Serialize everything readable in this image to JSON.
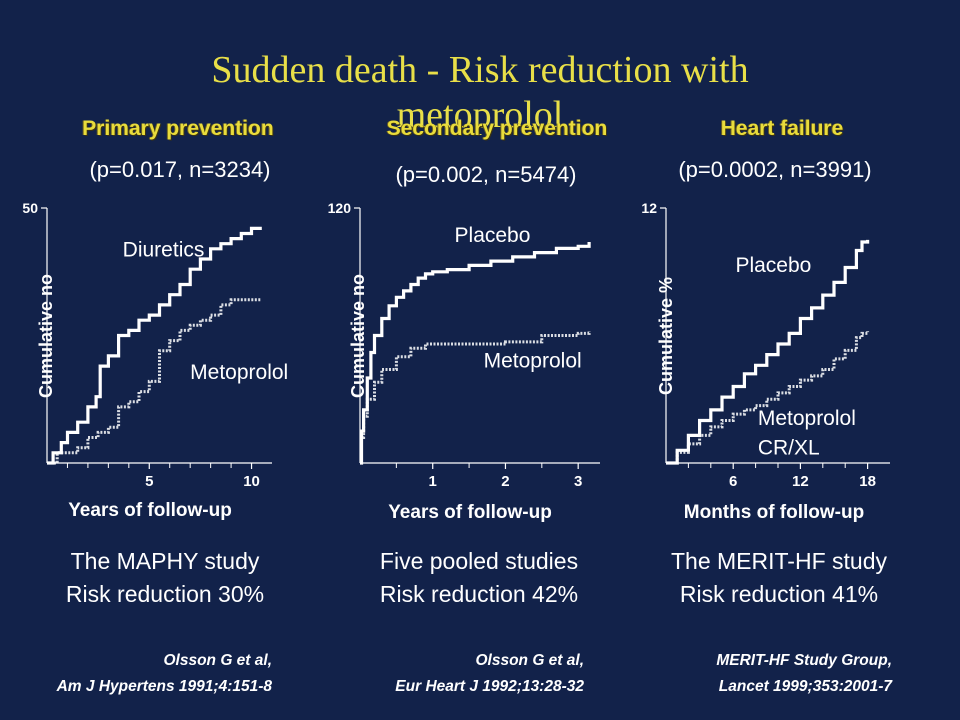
{
  "title": "Sudden death - Risk reduction with metoprolol",
  "panels": [
    {
      "heading": "Primary prevention",
      "stats": "(p=0.017, n=3234)",
      "study": "The MAPHY study",
      "reduction": "Risk reduction 30%",
      "citation_author": "Olsson G et al,",
      "citation_ref": "Am J Hypertens 1991;4:151-8"
    },
    {
      "heading": "Secondary prevention",
      "stats": "(p=0.002, n=5474)",
      "study": "Five pooled studies",
      "reduction": "Risk reduction 42%",
      "citation_author": "Olsson G et al,",
      "citation_ref": "Eur Heart J 1992;13:28-32"
    },
    {
      "heading": "Heart failure",
      "stats": "(p=0.0002, n=3991)",
      "study": "The MERIT-HF study",
      "reduction": "Risk reduction 41%",
      "citation_author": "MERIT-HF Study Group,",
      "citation_ref": "Lancet 1999;353:2001-7"
    }
  ],
  "colors": {
    "background": "#12224a",
    "title": "#e8df48",
    "heading": "#e9dc3c",
    "curve": "#ffffff",
    "text": "#ffffff"
  },
  "chart_data": [
    {
      "type": "line",
      "title": "Primary prevention",
      "xlabel": "Years of follow-up",
      "ylabel": "Cumulative no",
      "xlim": [
        0,
        11
      ],
      "ylim": [
        0,
        50
      ],
      "xticks": [
        5,
        10
      ],
      "xtick_labels": [
        "5",
        "10"
      ],
      "yticks": [
        50
      ],
      "ytick_labels": [
        "50"
      ],
      "minor_xticks": [
        1,
        2,
        3,
        4,
        6,
        7,
        8,
        9
      ],
      "series": [
        {
          "name": "Diuretics",
          "style": "solid",
          "points": [
            [
              0,
              0
            ],
            [
              0.3,
              2
            ],
            [
              0.7,
              4
            ],
            [
              1.0,
              6
            ],
            [
              1.5,
              8
            ],
            [
              2.0,
              11
            ],
            [
              2.4,
              13
            ],
            [
              2.6,
              19
            ],
            [
              3.0,
              21
            ],
            [
              3.5,
              25
            ],
            [
              4.0,
              26
            ],
            [
              4.5,
              28
            ],
            [
              5.0,
              29
            ],
            [
              5.5,
              31
            ],
            [
              6.0,
              33
            ],
            [
              6.5,
              35
            ],
            [
              7.0,
              38
            ],
            [
              7.5,
              40
            ],
            [
              8.0,
              42
            ],
            [
              8.5,
              43
            ],
            [
              9.0,
              44
            ],
            [
              9.5,
              45
            ],
            [
              10.0,
              46
            ],
            [
              10.5,
              46
            ]
          ]
        },
        {
          "name": "Metoprolol",
          "style": "dotted",
          "points": [
            [
              0,
              0
            ],
            [
              0.5,
              2
            ],
            [
              1.0,
              2
            ],
            [
              1.5,
              3
            ],
            [
              2.0,
              5
            ],
            [
              2.5,
              6
            ],
            [
              3.0,
              7
            ],
            [
              3.5,
              11
            ],
            [
              4.0,
              12
            ],
            [
              4.5,
              14
            ],
            [
              5.0,
              16
            ],
            [
              5.5,
              22
            ],
            [
              6.0,
              24
            ],
            [
              6.5,
              26
            ],
            [
              7.0,
              27
            ],
            [
              7.5,
              28
            ],
            [
              8.0,
              29
            ],
            [
              8.5,
              31
            ],
            [
              9.0,
              32
            ],
            [
              9.5,
              32
            ],
            [
              10.0,
              32
            ],
            [
              10.5,
              32
            ]
          ]
        }
      ],
      "labels": [
        {
          "text": "Diuretics",
          "x": 3.7,
          "y": 40.5
        },
        {
          "text": "Metoprolol",
          "x": 7.0,
          "y": 16.5
        }
      ]
    },
    {
      "type": "line",
      "title": "Secondary prevention",
      "xlabel": "Years of follow-up",
      "ylabel": "Cumulative no",
      "xlim": [
        0,
        3.3
      ],
      "ylim": [
        0,
        120
      ],
      "xticks": [
        1,
        2,
        3
      ],
      "xtick_labels": [
        "1",
        "2",
        "3"
      ],
      "yticks": [
        120
      ],
      "ytick_labels": [
        "120"
      ],
      "minor_xticks": [
        0.5,
        1.5,
        2.5
      ],
      "series": [
        {
          "name": "Placebo",
          "style": "solid",
          "points": [
            [
              0,
              0
            ],
            [
              0.02,
              15
            ],
            [
              0.05,
              25
            ],
            [
              0.1,
              40
            ],
            [
              0.15,
              52
            ],
            [
              0.2,
              60
            ],
            [
              0.3,
              68
            ],
            [
              0.4,
              74
            ],
            [
              0.5,
              78
            ],
            [
              0.6,
              81
            ],
            [
              0.7,
              84
            ],
            [
              0.8,
              87
            ],
            [
              0.9,
              89
            ],
            [
              1.0,
              90
            ],
            [
              1.2,
              91
            ],
            [
              1.5,
              93
            ],
            [
              1.8,
              95
            ],
            [
              2.1,
              97
            ],
            [
              2.4,
              99
            ],
            [
              2.7,
              101
            ],
            [
              3.0,
              102
            ],
            [
              3.15,
              104
            ]
          ]
        },
        {
          "name": "Metoprolol",
          "style": "dotted",
          "points": [
            [
              0,
              0
            ],
            [
              0.02,
              12
            ],
            [
              0.05,
              22
            ],
            [
              0.1,
              30
            ],
            [
              0.2,
              38
            ],
            [
              0.3,
              44
            ],
            [
              0.5,
              50
            ],
            [
              0.7,
              54
            ],
            [
              0.9,
              56
            ],
            [
              1.5,
              56
            ],
            [
              2.0,
              57
            ],
            [
              2.5,
              60
            ],
            [
              3.0,
              61
            ],
            [
              3.15,
              62
            ]
          ]
        }
      ],
      "labels": [
        {
          "text": "Placebo",
          "x": 1.3,
          "y": 104
        },
        {
          "text": "Metoprolol",
          "x": 1.7,
          "y": 45
        }
      ]
    },
    {
      "type": "line",
      "title": "Heart failure",
      "xlabel": "Months of follow-up",
      "ylabel": "Cumulative %",
      "xlim": [
        0,
        20
      ],
      "ylim": [
        0,
        12
      ],
      "xticks": [
        6,
        12,
        18
      ],
      "xtick_labels": [
        "6",
        "12",
        "18"
      ],
      "yticks": [
        12
      ],
      "ytick_labels": [
        "12"
      ],
      "minor_xticks": [
        2,
        4,
        8,
        10,
        14,
        16
      ],
      "series": [
        {
          "name": "Placebo",
          "style": "solid",
          "points": [
            [
              0,
              0
            ],
            [
              1,
              0.6
            ],
            [
              2,
              1.3
            ],
            [
              3,
              2.0
            ],
            [
              4,
              2.5
            ],
            [
              5,
              3.1
            ],
            [
              6,
              3.6
            ],
            [
              7,
              4.2
            ],
            [
              8,
              4.6
            ],
            [
              9,
              5.1
            ],
            [
              10,
              5.6
            ],
            [
              11,
              6.1
            ],
            [
              12,
              6.8
            ],
            [
              13,
              7.3
            ],
            [
              14,
              7.9
            ],
            [
              15,
              8.5
            ],
            [
              16,
              9.2
            ],
            [
              17,
              10.0
            ],
            [
              17.5,
              10.4
            ],
            [
              18,
              10.5
            ]
          ]
        },
        {
          "name": "Metoprolol CR/XL",
          "style": "dotted",
          "points": [
            [
              0,
              0
            ],
            [
              1,
              0.5
            ],
            [
              2,
              0.9
            ],
            [
              3,
              1.3
            ],
            [
              4,
              1.7
            ],
            [
              5,
              2.0
            ],
            [
              6,
              2.3
            ],
            [
              7,
              2.5
            ],
            [
              8,
              2.7
            ],
            [
              9,
              3.0
            ],
            [
              10,
              3.3
            ],
            [
              11,
              3.6
            ],
            [
              12,
              3.9
            ],
            [
              13,
              4.1
            ],
            [
              14,
              4.4
            ],
            [
              15,
              4.9
            ],
            [
              16,
              5.3
            ],
            [
              17,
              5.9
            ],
            [
              17.5,
              6.1
            ],
            [
              18,
              6.2
            ]
          ]
        }
      ],
      "labels": [
        {
          "text": "Placebo",
          "x": 6.2,
          "y": 9.0
        },
        {
          "text": "Metoprolol",
          "x": 8.2,
          "y": 1.8
        },
        {
          "text": "CR/XL",
          "x": 8.2,
          "y": 0.4
        }
      ]
    }
  ]
}
